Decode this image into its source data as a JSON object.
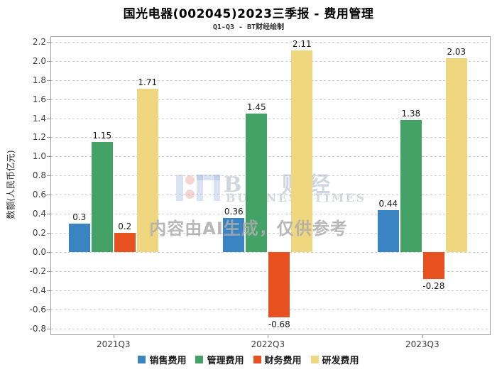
{
  "header": {
    "title": "国光电器(002045)2023三季报 - 费用管理",
    "subtitle": "Q1-Q3 - BT财经绘制"
  },
  "watermark": {
    "brand": "BT 财经",
    "brand_sub": "BUSINESS TIMES",
    "notice": "内容由AI生成，仅供参考"
  },
  "chart_data": {
    "type": "bar",
    "title": "国光电器(002045)2023三季报 - 费用管理",
    "subtitle": "Q1-Q3 - BT财经绘制",
    "categories": [
      "2021Q3",
      "2022Q3",
      "2023Q3"
    ],
    "series": [
      {
        "name": "销售费用",
        "color": "#3a84c3",
        "values": [
          0.3,
          0.36,
          0.44
        ]
      },
      {
        "name": "管理费用",
        "color": "#45a266",
        "values": [
          1.15,
          1.45,
          1.38
        ]
      },
      {
        "name": "财务费用",
        "color": "#e6511f",
        "values": [
          0.2,
          -0.68,
          -0.28
        ]
      },
      {
        "name": "研发费用",
        "color": "#eed77e",
        "values": [
          1.71,
          2.11,
          2.03
        ]
      }
    ],
    "xlabel": "",
    "ylabel": "数额(人民币亿元)",
    "ylim": [
      -0.86,
      2.25
    ],
    "yticks": {
      "min": -0.8,
      "max": 2.2,
      "step": 0.2
    },
    "grid": "horizontal-dashed",
    "legend_position": "bottom-center",
    "value_labels": true,
    "colors": {
      "grid": "#cdcdcd",
      "spine": "#a0a0a0",
      "tick_text": "#3d3d3d",
      "value_text": "#1a1a1a"
    }
  }
}
